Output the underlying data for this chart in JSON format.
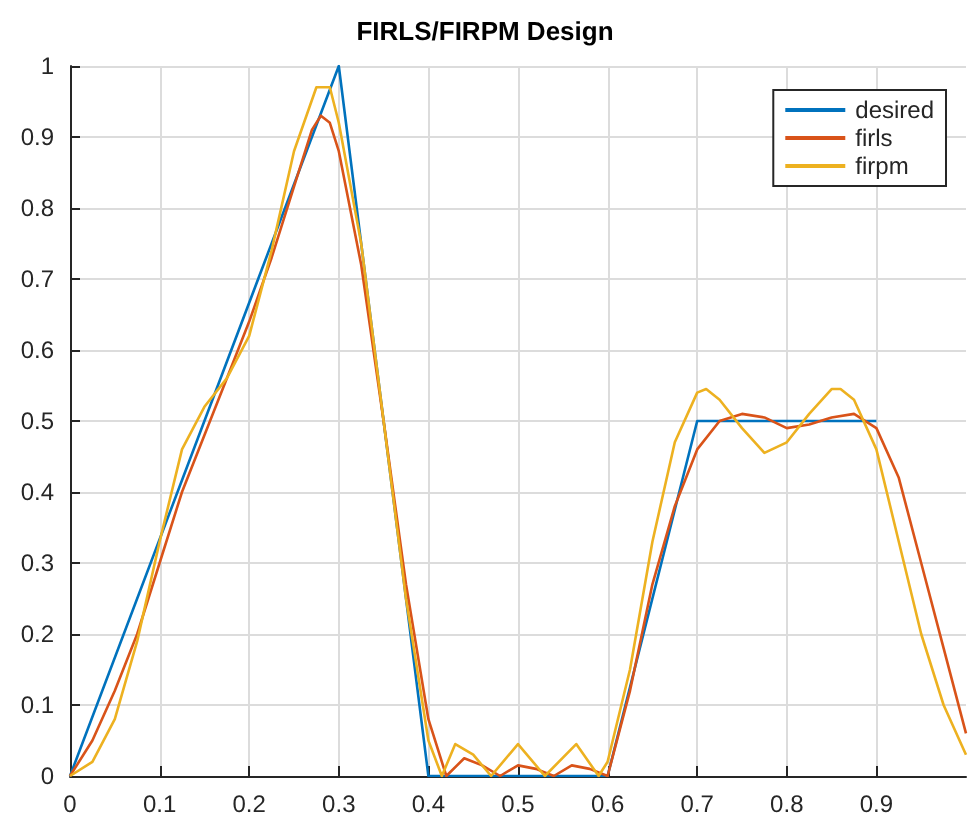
{
  "chart_data": {
    "type": "line",
    "title": "FIRLS/FIRPM Design",
    "xlim": [
      0,
      1
    ],
    "xticks": [
      0,
      0.1,
      0.2,
      0.3,
      0.4,
      0.5,
      0.6,
      0.7,
      0.8,
      0.9
    ],
    "ylim": [
      0,
      1
    ],
    "yticks": [
      0,
      0.1,
      0.2,
      0.3,
      0.4,
      0.5,
      0.6,
      0.7,
      0.8,
      0.9,
      1
    ],
    "grid": true,
    "legend": "top right",
    "marker": "none",
    "line_style": "solid",
    "series": [
      {
        "name": "desired",
        "color": "#0072bd",
        "x": [
          0,
          0.3,
          0.4,
          0.6,
          0.7,
          0.9
        ],
        "values": [
          0,
          1,
          0,
          0,
          0.5,
          0.5
        ]
      },
      {
        "name": "firls",
        "color": "#d95319",
        "x": [
          0,
          0.025,
          0.05,
          0.075,
          0.1,
          0.125,
          0.15,
          0.175,
          0.2,
          0.225,
          0.25,
          0.27,
          0.28,
          0.29,
          0.3,
          0.325,
          0.35,
          0.375,
          0.4,
          0.42,
          0.44,
          0.46,
          0.48,
          0.5,
          0.52,
          0.54,
          0.56,
          0.58,
          0.6,
          0.625,
          0.65,
          0.675,
          0.7,
          0.725,
          0.75,
          0.775,
          0.8,
          0.825,
          0.85,
          0.875,
          0.9,
          0.925,
          0.95,
          0.975,
          1
        ],
        "values": [
          0,
          0.05,
          0.12,
          0.2,
          0.3,
          0.4,
          0.48,
          0.56,
          0.64,
          0.73,
          0.83,
          0.91,
          0.93,
          0.92,
          0.88,
          0.72,
          0.5,
          0.27,
          0.08,
          0,
          0.025,
          0.015,
          0,
          0.015,
          0.01,
          0,
          0.015,
          0.01,
          0,
          0.12,
          0.27,
          0.38,
          0.46,
          0.5,
          0.51,
          0.505,
          0.49,
          0.495,
          0.505,
          0.51,
          0.49,
          0.42,
          0.3,
          0.18,
          0.06
        ]
      },
      {
        "name": "firpm",
        "color": "#edb120",
        "x": [
          0,
          0.025,
          0.05,
          0.075,
          0.1,
          0.125,
          0.15,
          0.175,
          0.2,
          0.225,
          0.25,
          0.275,
          0.29,
          0.3,
          0.325,
          0.35,
          0.375,
          0.4,
          0.415,
          0.43,
          0.45,
          0.47,
          0.5,
          0.53,
          0.565,
          0.59,
          0.6,
          0.625,
          0.65,
          0.675,
          0.7,
          0.71,
          0.725,
          0.75,
          0.775,
          0.8,
          0.825,
          0.85,
          0.86,
          0.875,
          0.9,
          0.925,
          0.95,
          0.975,
          1
        ],
        "values": [
          0,
          0.02,
          0.08,
          0.19,
          0.33,
          0.46,
          0.52,
          0.56,
          0.62,
          0.74,
          0.88,
          0.97,
          0.97,
          0.92,
          0.75,
          0.5,
          0.25,
          0.05,
          0,
          0.045,
          0.03,
          0,
          0.045,
          0,
          0.045,
          0,
          0.02,
          0.15,
          0.33,
          0.47,
          0.54,
          0.545,
          0.53,
          0.49,
          0.455,
          0.47,
          0.51,
          0.545,
          0.545,
          0.53,
          0.46,
          0.33,
          0.2,
          0.1,
          0.03
        ]
      }
    ]
  }
}
